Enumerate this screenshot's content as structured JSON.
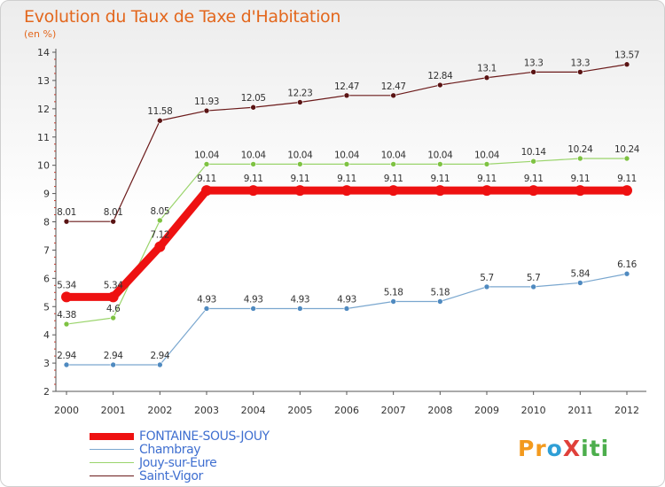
{
  "title": "Evolution du Taux de Taxe d'Habitation",
  "unit": "(en %)",
  "logo": {
    "text": "ProXiti",
    "letters": [
      "P",
      "r",
      "o",
      "X",
      "i",
      "t",
      "i"
    ],
    "colors": [
      "#f39a1e",
      "#f39a1e",
      "#2f9fd6",
      "#e0403a",
      "#4cae4c",
      "#4cae4c",
      "#4cae4c"
    ]
  },
  "chart_data": {
    "type": "line",
    "categories": [
      "2000",
      "2001",
      "2002",
      "2003",
      "2004",
      "2005",
      "2006",
      "2007",
      "2008",
      "2009",
      "2010",
      "2011",
      "2012"
    ],
    "ylim": [
      2,
      14
    ],
    "yticks": [
      2,
      3,
      4,
      5,
      6,
      7,
      8,
      9,
      10,
      11,
      12,
      13,
      14
    ],
    "grid": false,
    "legend_position": "bottom-left",
    "series": [
      {
        "name": "Saint-Vigor",
        "color": "#6b1a1a",
        "width": 1.2,
        "marker": "#5a1414",
        "values": [
          8.01,
          8.01,
          11.58,
          11.93,
          12.05,
          12.23,
          12.47,
          12.47,
          12.84,
          13.1,
          13.3,
          13.3,
          13.57
        ],
        "labels": [
          "8.01",
          "8.01",
          "11.58",
          "11.93",
          "12.05",
          "12.23",
          "12.47",
          "12.47",
          "12.84",
          "13.1",
          "13.3",
          "13.3",
          "13.57"
        ]
      },
      {
        "name": "Jouy-sur-Eure",
        "color": "#9ad46b",
        "width": 1.2,
        "marker": "#7ec242",
        "values": [
          4.38,
          4.6,
          8.05,
          10.04,
          10.04,
          10.04,
          10.04,
          10.04,
          10.04,
          10.04,
          10.14,
          10.24,
          10.24
        ],
        "labels": [
          "4.38",
          "4.6",
          "8.05",
          "10.04",
          "10.04",
          "10.04",
          "10.04",
          "10.04",
          "10.04",
          "10.04",
          "10.14",
          "10.24",
          "10.24"
        ]
      },
      {
        "name": "Chambray",
        "color": "#7aa7cf",
        "width": 1.2,
        "marker": "#4f8ac0",
        "values": [
          2.94,
          2.94,
          2.94,
          4.93,
          4.93,
          4.93,
          4.93,
          5.18,
          5.18,
          5.7,
          5.7,
          5.84,
          6.16
        ],
        "labels": [
          "2.94",
          "2.94",
          "2.94",
          "4.93",
          "4.93",
          "4.93",
          "4.93",
          "5.18",
          "5.18",
          "5.7",
          "5.7",
          "5.84",
          "6.16"
        ]
      },
      {
        "name": "FONTAINE-SOUS-JOUY",
        "color": "#ee1111",
        "width": 9,
        "marker": "#ee1111",
        "values": [
          5.34,
          5.34,
          7.12,
          9.11,
          9.11,
          9.11,
          9.11,
          9.11,
          9.11,
          9.11,
          9.11,
          9.11,
          9.11
        ],
        "labels": [
          "5.34",
          "5.34",
          "7.12",
          "9.11",
          "9.11",
          "9.11",
          "9.11",
          "9.11",
          "9.11",
          "9.11",
          "9.11",
          "9.11",
          "9.11"
        ]
      }
    ],
    "legend_order": [
      "FONTAINE-SOUS-JOUY",
      "Chambray",
      "Jouy-sur-Eure",
      "Saint-Vigor"
    ]
  }
}
